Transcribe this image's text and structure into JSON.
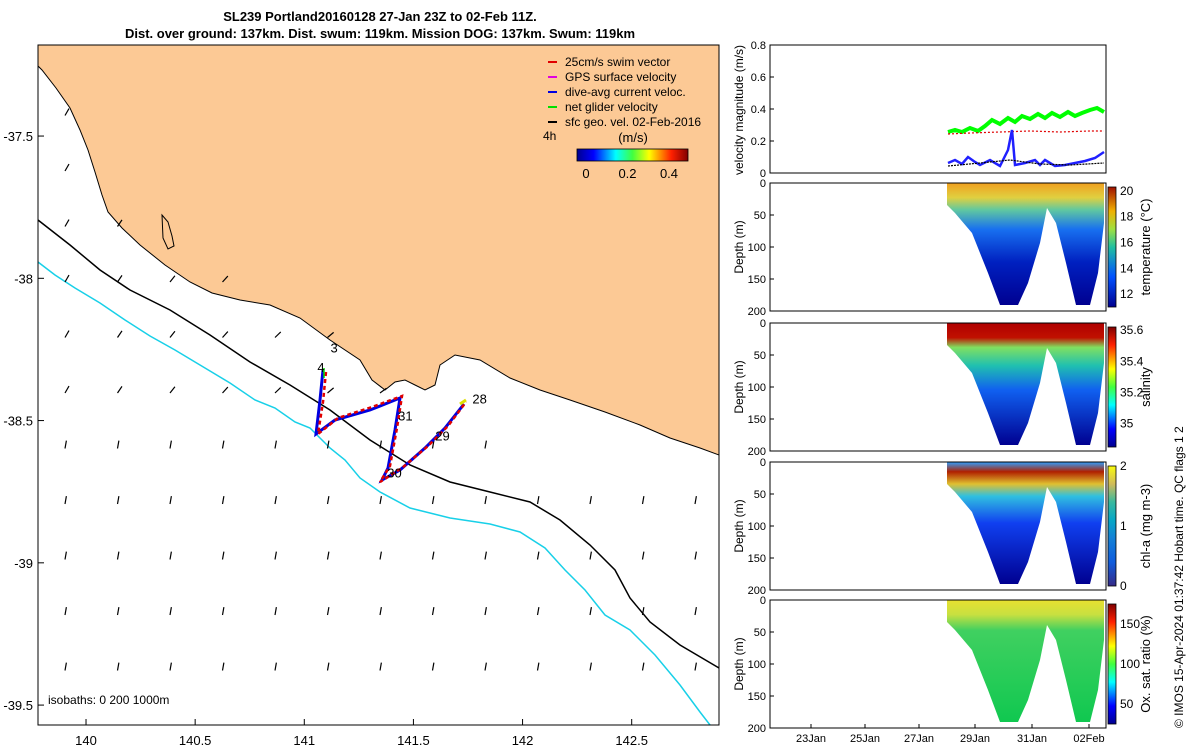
{
  "title_line1": "SL239 Portland20160128 27-Jan 23Z to 02-Feb 11Z.",
  "title_line2": "Dist. over ground: 137km. Dist. swum: 119km. Mission DOG: 137km. Swum: 119km",
  "map": {
    "lon_ticks": [
      "140",
      "140.5",
      "141",
      "141.5",
      "142",
      "142.5"
    ],
    "lat_ticks": [
      "-37.5",
      "-38",
      "-38.5",
      "-39",
      "-39.5"
    ],
    "lon_range": [
      139.78,
      142.9
    ],
    "lat_range": [
      -39.57,
      -37.18
    ],
    "isobaths_label": "isobaths: 0   200  1000m",
    "legend": [
      {
        "label": "25cm/s swim vector",
        "color": "#e00000"
      },
      {
        "label": "GPS surface velocity",
        "color": "#e000e0"
      },
      {
        "label": "dive-avg current veloc.",
        "color": "#0000e0"
      },
      {
        "label": "net glider velocity",
        "color": "#00e000"
      },
      {
        "label": "sfc geo. vel. 02-Feb-2016",
        "color": "#000000"
      }
    ],
    "legend_4h": "4h",
    "colorbar_title": "(m/s)",
    "colorbar_ticks": [
      "0",
      "0.2",
      "0.4"
    ],
    "day_labels": [
      {
        "text": "3",
        "lon": 141.12,
        "lat": -38.26
      },
      {
        "text": "4",
        "lon": 141.06,
        "lat": -38.33
      },
      {
        "text": "31",
        "lon": 141.43,
        "lat": -38.5
      },
      {
        "text": "29",
        "lon": 141.6,
        "lat": -38.57
      },
      {
        "text": "28",
        "lon": 141.77,
        "lat": -38.44
      },
      {
        "text": "30",
        "lon": 141.38,
        "lat": -38.7
      }
    ]
  },
  "panels": {
    "velocity": {
      "ylabel": "velocity magnitude (m/s)",
      "yticks": [
        "0",
        "0.2",
        "0.4",
        "0.6",
        "0.8"
      ],
      "ylim": [
        0,
        0.8
      ]
    },
    "temperature": {
      "ylabel": "Depth (m)",
      "cblabel": "temperature (°C)",
      "yticks": [
        "0",
        "50",
        "100",
        "150",
        "200"
      ],
      "cbticks": [
        "12",
        "14",
        "16",
        "18",
        "20"
      ]
    },
    "salinity": {
      "ylabel": "Depth (m)",
      "cblabel": "salinity",
      "yticks": [
        "0",
        "50",
        "100",
        "150",
        "200"
      ],
      "cbticks": [
        "35",
        "35.2",
        "35.4",
        "35.6"
      ]
    },
    "chla": {
      "ylabel": "Depth (m)",
      "cblabel": "chl-a (mg m-3)",
      "yticks": [
        "0",
        "50",
        "100",
        "150",
        "200"
      ],
      "cbticks": [
        "0",
        "1",
        "2"
      ]
    },
    "oxygen": {
      "ylabel": "Depth (m)",
      "cblabel": "Ox. sat. ratio (%)",
      "yticks": [
        "0",
        "50",
        "100",
        "150",
        "200"
      ],
      "cbticks": [
        "50",
        "100",
        "150"
      ]
    },
    "x_ticks": [
      "23Jan",
      "25Jan",
      "27Jan",
      "29Jan",
      "31Jan",
      "02Feb"
    ]
  },
  "credit": "© IMOS 15-Apr-2024 01:37:42 Hobart time. QC flags 1  2"
}
